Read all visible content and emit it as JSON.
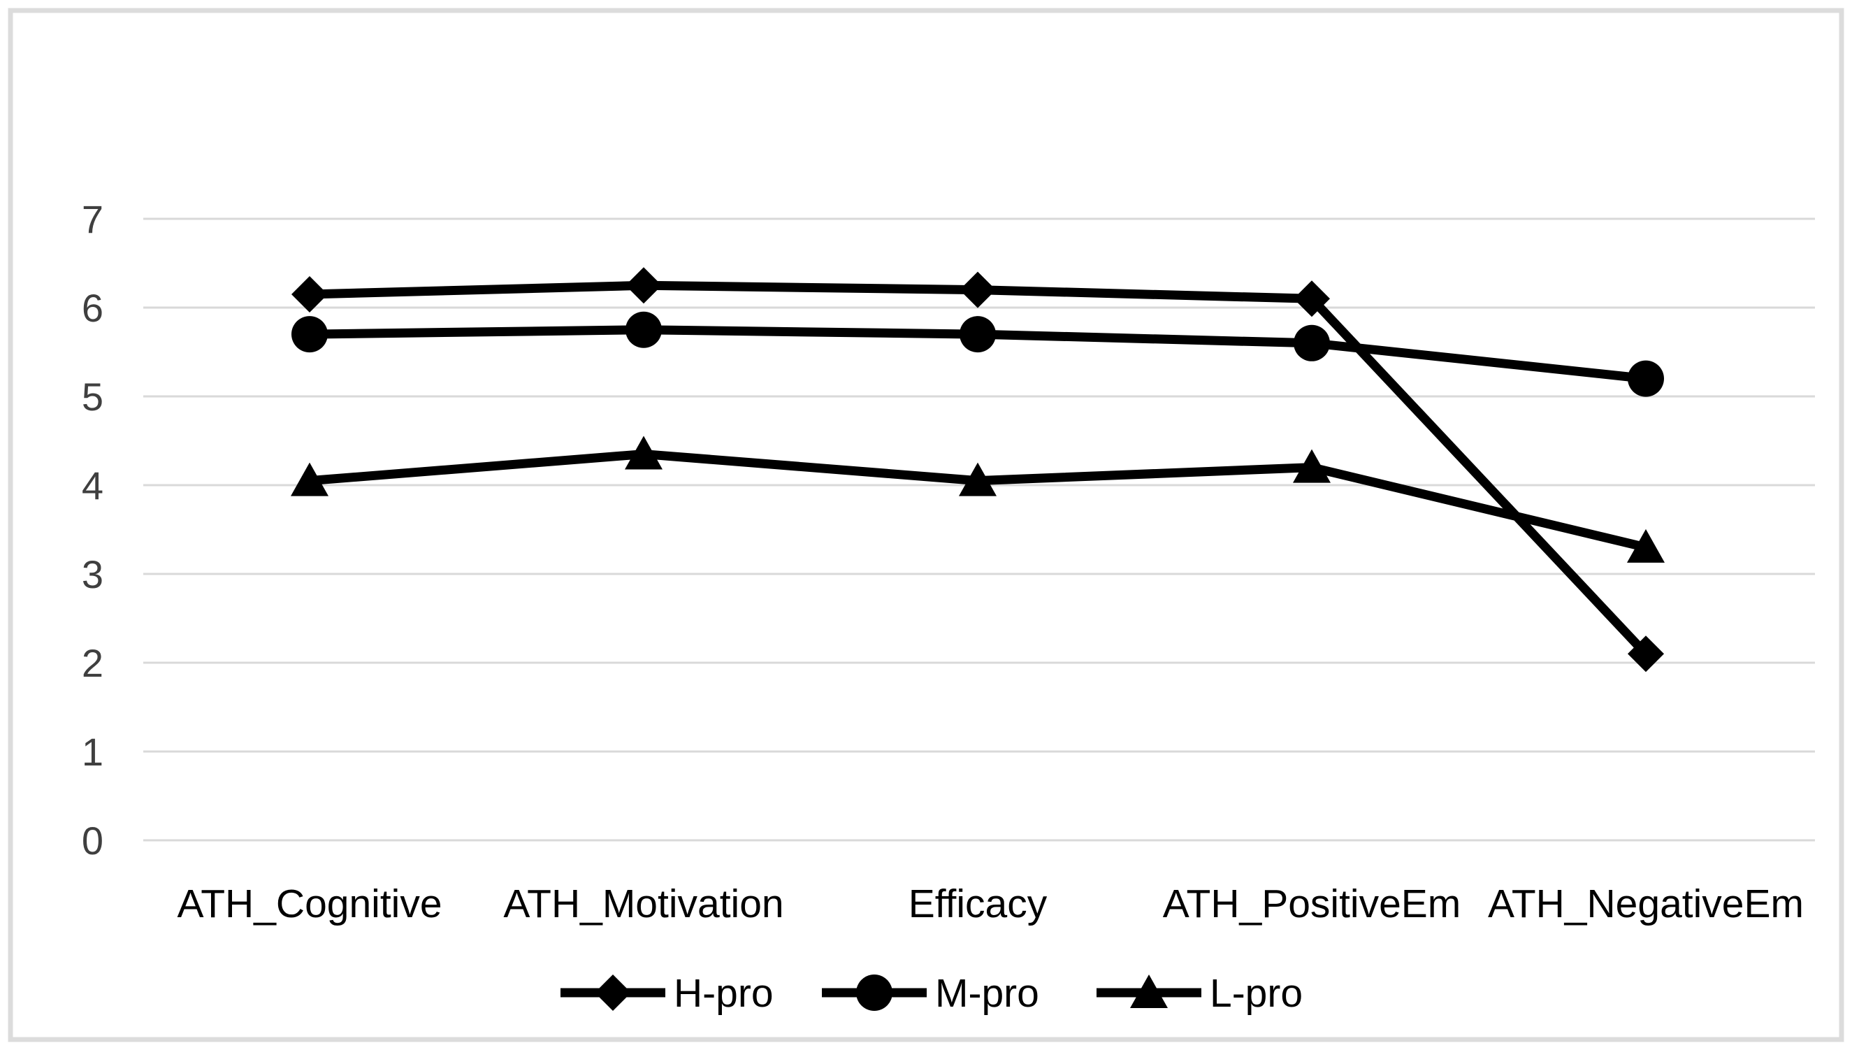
{
  "chart_data": {
    "type": "line",
    "title": "",
    "xlabel": "",
    "ylabel": "",
    "categories": [
      "ATH_Cognitive",
      "ATH_Motivation",
      "Efficacy",
      "ATH_PositiveEm",
      "ATH_NegativeEm"
    ],
    "series": [
      {
        "name": "H-pro",
        "marker": "diamond",
        "values": [
          6.15,
          6.25,
          6.2,
          6.1,
          2.1
        ]
      },
      {
        "name": "M-pro",
        "marker": "circle",
        "values": [
          5.7,
          5.75,
          5.7,
          5.6,
          5.2
        ]
      },
      {
        "name": "L-pro",
        "marker": "triangle",
        "values": [
          4.05,
          4.35,
          4.05,
          4.2,
          3.3
        ]
      }
    ],
    "ylim": [
      0,
      7
    ],
    "yticks": [
      0,
      1,
      2,
      3,
      4,
      5,
      6,
      7
    ],
    "grid": "horizontal",
    "legend_position": "bottom",
    "colors": {
      "series": "#000000",
      "gridline": "#d9d9d9",
      "frame_border": "#dcdcdc",
      "tick_label": "#3f3f3f",
      "category_label": "#000000",
      "legend_label": "#000000",
      "background": "#ffffff"
    }
  }
}
